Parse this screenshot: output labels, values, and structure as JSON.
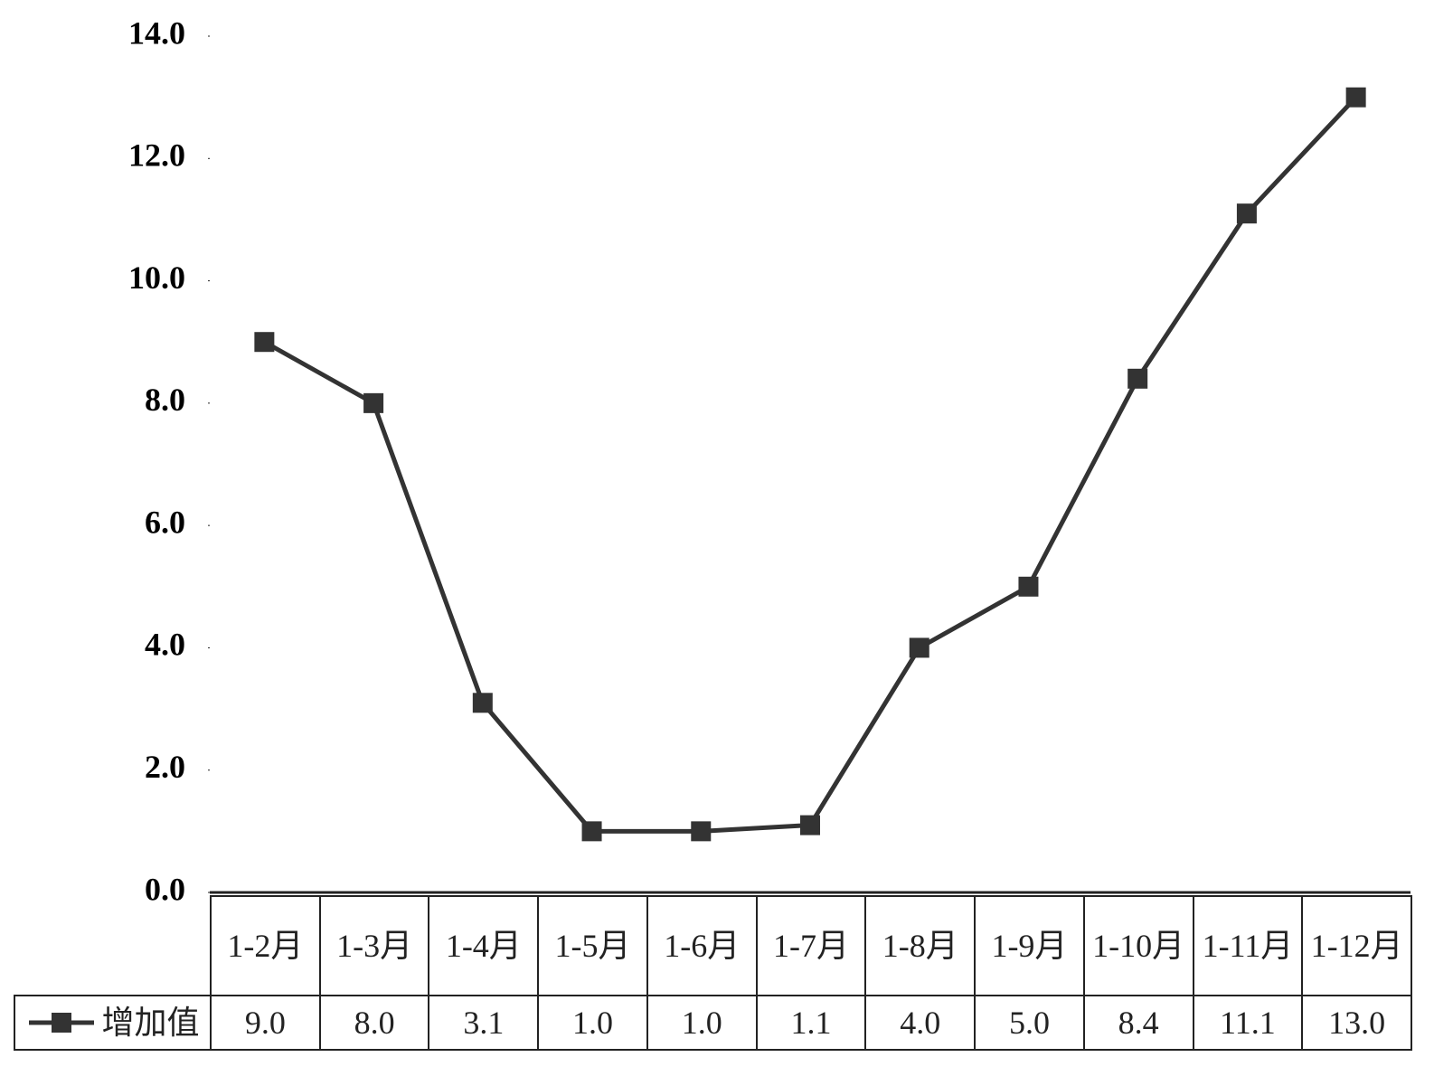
{
  "chart_data": {
    "type": "line",
    "categories": [
      "1-2月",
      "1-3月",
      "1-4月",
      "1-5月",
      "1-6月",
      "1-7月",
      "1-8月",
      "1-9月",
      "1-10月",
      "1-11月",
      "1-12月"
    ],
    "series": [
      {
        "name": "增加值",
        "color": "#333333",
        "values": [
          9.0,
          8.0,
          3.1,
          1.0,
          1.0,
          1.1,
          4.0,
          5.0,
          8.4,
          11.1,
          13.0
        ],
        "value_labels": [
          "9.0",
          "8.0",
          "3.1",
          "1.0",
          "1.0",
          "1.1",
          "4.0",
          "5.0",
          "8.4",
          "11.1",
          "13.0"
        ]
      }
    ],
    "ylim": [
      0,
      14
    ],
    "yticks": [
      {
        "value": 0,
        "label": "0.0"
      },
      {
        "value": 2,
        "label": "2.0"
      },
      {
        "value": 4,
        "label": "4.0"
      },
      {
        "value": 6,
        "label": "6.0"
      },
      {
        "value": 8,
        "label": "8.0"
      },
      {
        "value": 10,
        "label": "10.0"
      },
      {
        "value": 12,
        "label": "12.0"
      },
      {
        "value": 14,
        "label": "14.0"
      }
    ],
    "grid": false
  }
}
